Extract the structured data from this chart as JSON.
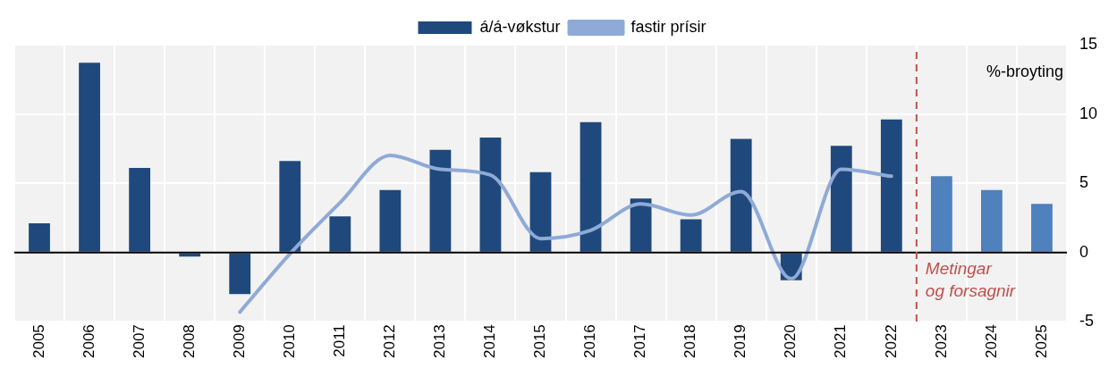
{
  "chart_data": {
    "type": "bar",
    "ylabel": "%-broyting",
    "categories": [
      "2005",
      "2006",
      "2007",
      "2008",
      "2009",
      "2010",
      "2011",
      "2012",
      "2013",
      "2014",
      "2015",
      "2016",
      "2017",
      "2018",
      "2019",
      "2020",
      "2021",
      "2022",
      "2023",
      "2024",
      "2025"
    ],
    "series": [
      {
        "name": "á/á-vøkstur",
        "colors": [
          "#1f497d",
          "#1f497d",
          "#1f497d",
          "#1f497d",
          "#1f497d",
          "#1f497d",
          "#1f497d",
          "#1f497d",
          "#1f497d",
          "#1f497d",
          "#1f497d",
          "#1f497d",
          "#1f497d",
          "#1f497d",
          "#1f497d",
          "#1f497d",
          "#1f497d",
          "#1f497d",
          "#4f81bd",
          "#4f81bd",
          "#4f81bd"
        ],
        "values": [
          2.1,
          13.7,
          6.1,
          -0.3,
          -3.0,
          6.6,
          2.6,
          4.5,
          7.4,
          8.3,
          5.8,
          9.4,
          3.9,
          2.4,
          8.2,
          -2.0,
          7.7,
          9.6,
          5.5,
          4.5,
          3.5
        ]
      },
      {
        "name": "fastir prísir",
        "type": "line",
        "color": "#8faad6",
        "values": [
          null,
          null,
          null,
          null,
          -4.3,
          -0.1,
          3.6,
          7.0,
          6.0,
          5.6,
          1.0,
          1.6,
          3.5,
          2.7,
          4.4,
          -1.9,
          6.0,
          5.5,
          null,
          null,
          null
        ]
      }
    ],
    "ylim": [
      -5,
      15
    ],
    "yticks": [
      -5,
      0,
      5,
      10,
      15
    ],
    "grid": true,
    "legend": "top",
    "marker": "none",
    "ref_lines": [
      {
        "axis": "x",
        "value": "2023",
        "label": "Metingar og forsagnir",
        "color": "#c0504d",
        "line_style": "dashed"
      }
    ]
  }
}
